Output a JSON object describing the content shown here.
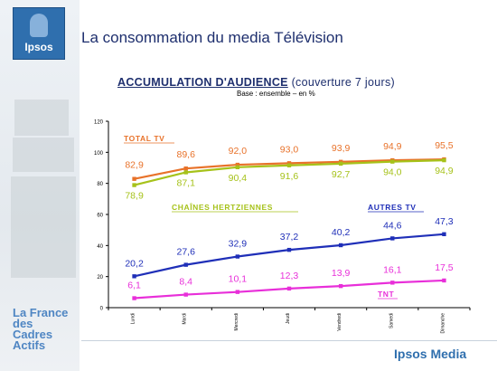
{
  "header": {
    "logo_text": "Ipsos",
    "page_title": "La consommation du media Télévision"
  },
  "chart_title": "ACCUMULATION D'AUDIENCE",
  "chart_title_suffix": "(couverture 7 jours)",
  "chart_subtitle": "Base : ensemble – en %",
  "sidebar_brand_lines": [
    "La France",
    "des Cadres",
    "Actifs"
  ],
  "footer_logo": "Ipsos Media",
  "colors": {
    "total_tv": "#e8722a",
    "hertziennes": "#a6c21a",
    "autres_tv": "#1f2fb8",
    "tnt": "#e82fd9"
  },
  "chart_data": {
    "type": "line",
    "title": "ACCUMULATION D'AUDIENCE (couverture 7 jours)",
    "subtitle": "Base : ensemble – en %",
    "categories": [
      "Lundi",
      "Mardi",
      "Mercredi",
      "Jeudi",
      "Vendredi",
      "Samedi",
      "Dimanche"
    ],
    "ylim": [
      0,
      120
    ],
    "yticks": [
      "0",
      "20",
      "40",
      "60",
      "80",
      "100",
      "120"
    ],
    "grid": false,
    "series": [
      {
        "name": "TOTAL TV",
        "values": [
          82.9,
          89.6,
          92.0,
          93.0,
          93.9,
          94.9,
          95.5
        ],
        "labels": [
          "82,9",
          "89,6",
          "92,0",
          "93,0",
          "93,9",
          "94,9",
          "95,5"
        ]
      },
      {
        "name": "CHAÎNES HERTZIENNES",
        "values": [
          78.9,
          87.1,
          90.4,
          91.6,
          92.7,
          94.0,
          94.9
        ],
        "labels": [
          "78,9",
          "87,1",
          "90,4",
          "91,6",
          "92,7",
          "94,0",
          "94,9"
        ]
      },
      {
        "name": "AUTRES TV",
        "values": [
          20.2,
          27.6,
          32.9,
          37.2,
          40.2,
          44.6,
          47.3
        ],
        "labels": [
          "20,2",
          "27,6",
          "32,9",
          "37,2",
          "40,2",
          "44,6",
          "47,3"
        ]
      },
      {
        "name": "TNT",
        "values": [
          6.1,
          8.4,
          10.1,
          12.3,
          13.9,
          16.1,
          17.5
        ],
        "labels": [
          "6,1",
          "8,4",
          "10,1",
          "12,3",
          "13,9",
          "16,1",
          "17,5"
        ]
      }
    ]
  }
}
